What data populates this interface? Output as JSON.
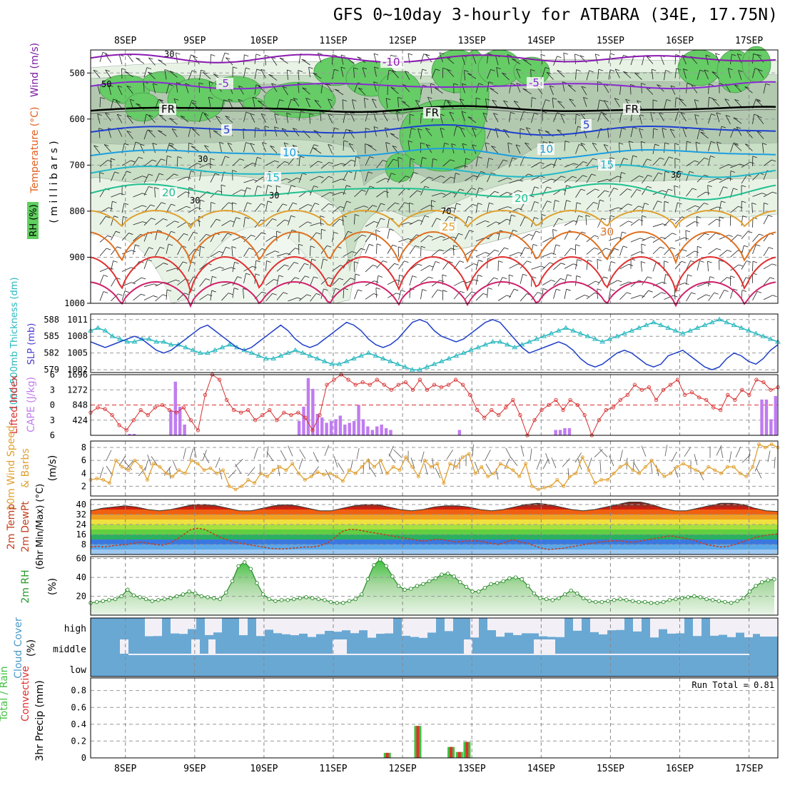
{
  "title": "GFS 0~10day 3-hourly for ATBARA (34E, 17.75N)",
  "days": [
    "8SEP",
    "9SEP",
    "10SEP",
    "11SEP",
    "12SEP",
    "13SEP",
    "14SEP",
    "15SEP",
    "16SEP",
    "17SEP"
  ],
  "run_total": "Run Total = 0.81",
  "panel_labels": {
    "wind": "Wind (m/s)",
    "temperature": "Temperature (°C)",
    "rh": "RH (%)",
    "millibars": "( m i l l i b a r s )",
    "thickness": "1000-500mb Thickness (dm)",
    "slp": "SLP (mb)",
    "lifted": "Lifted Index",
    "cape": "CAPE (J/kg)",
    "wind10a": "10m Wind Speed",
    "wind10b": "& Barbs",
    "ms": "(m/s)",
    "temp2a": "2m Temp",
    "temp2b": "2m DewPt",
    "temp2c": "(6hr Min/Max) (°C)",
    "rh2": "2m RH",
    "pct": "(%)",
    "cloud": "Cloud Cover",
    "precip_a": "Total / Rain",
    "precip_b": "Convective",
    "precip_c": "3hr Precip (mm)"
  },
  "cloud_levels": [
    "high",
    "middle",
    "low"
  ],
  "colors": {
    "rh_green": "#5fcf5f",
    "slp": "#1e3fc8",
    "thickness": "#2ab8c0",
    "cape": "#c07cf0",
    "lifted": "#d83030",
    "wind10": "#e0a030",
    "rh2": "#3a9a3a",
    "cloud": "#6aa8d4",
    "rain": "#e03030",
    "total": "#40c040"
  },
  "chart_data": [
    {
      "type": "contour",
      "name": "upper",
      "ylabel": "( m i l l i b a r s )",
      "yticks": [
        500,
        600,
        700,
        800,
        900,
        1000
      ],
      "ylim": [
        1000,
        450
      ],
      "isotherm_labels": [
        "-10",
        "-5",
        "FR",
        "FR",
        "FR",
        "-5",
        "5",
        "5",
        "10",
        "10",
        "15",
        "15",
        "20",
        "20",
        "25",
        "30"
      ],
      "rh_labels": [
        "30",
        "50",
        "30",
        "30",
        "70",
        "30",
        "30"
      ]
    },
    {
      "type": "line",
      "name": "slp_thickness",
      "x_step_hours": 3,
      "slp_yticks": [
        1002,
        1005,
        1008,
        1011
      ],
      "thickness_yticks": [
        579,
        582,
        585,
        588
      ],
      "slp": [
        1007,
        1006.5,
        1006,
        1006.5,
        1007,
        1007.5,
        1008,
        1007.5,
        1006.5,
        1005.5,
        1005,
        1005.5,
        1006.5,
        1007.5,
        1008.5,
        1009.5,
        1010,
        1009,
        1008,
        1007,
        1006,
        1005.5,
        1006,
        1007,
        1008,
        1009,
        1010,
        1009,
        1007.5,
        1006.5,
        1006,
        1006.5,
        1007.5,
        1008.5,
        1009.5,
        1010.5,
        1010,
        1009,
        1007.5,
        1006.5,
        1006,
        1006.5,
        1007.5,
        1009,
        1010.5,
        1011,
        1010.5,
        1009,
        1008,
        1007.5,
        1007,
        1007.5,
        1008.5,
        1009.5,
        1010.5,
        1011,
        1010.5,
        1009,
        1007.5,
        1006,
        1005,
        1005.5,
        1006,
        1006.5,
        1007,
        1006.5,
        1005.5,
        1004,
        1003,
        1002.5,
        1003,
        1004,
        1005,
        1005.5,
        1005,
        1004,
        1003,
        1002.5,
        1003,
        1004.5,
        1005,
        1005.5,
        1004.5,
        1003.5,
        1002.5,
        1002,
        1002.5,
        1004,
        1005,
        1004.5,
        1003.5,
        1003,
        1004,
        1005.5,
        1006.5
      ],
      "thickness": [
        586,
        586.5,
        586,
        585,
        584.5,
        584,
        584,
        584.5,
        584.5,
        584,
        584,
        583.5,
        583.5,
        583,
        582.5,
        582,
        582,
        582.5,
        583,
        583.5,
        583,
        582.5,
        582,
        581.5,
        581,
        581,
        581.5,
        582,
        582.5,
        582,
        581.5,
        581,
        580.5,
        580,
        580,
        580.5,
        581,
        581.5,
        582,
        581.5,
        581,
        580.5,
        580,
        579.5,
        579,
        579,
        579.5,
        580,
        580.5,
        581,
        581.5,
        582,
        582.5,
        583,
        583.5,
        584,
        584,
        583.5,
        583,
        583.5,
        584,
        584.5,
        585,
        585.5,
        586,
        586.5,
        586,
        585.5,
        585,
        584.5,
        584,
        584.5,
        585,
        585.5,
        586,
        586.5,
        587,
        587.5,
        587,
        586.5,
        586,
        585.5,
        586,
        586.5,
        587,
        587.5,
        588,
        587.5,
        587,
        586.5,
        586,
        585.5,
        585,
        584.5,
        584
      ]
    },
    {
      "type": "bar+line",
      "name": "cape_lifted",
      "cape_yticks": [
        424,
        848,
        1272,
        1696
      ],
      "lifted_yticks": [
        -6,
        -3,
        0,
        3,
        6
      ],
      "cape": [
        0,
        0,
        0,
        0,
        0,
        0,
        0,
        0,
        40,
        40,
        0,
        0,
        0,
        0,
        0,
        0,
        0,
        700,
        1500,
        800,
        300,
        0,
        0,
        0,
        0,
        0,
        0,
        0,
        0,
        0,
        0,
        0,
        0,
        0,
        0,
        0,
        0,
        0,
        0,
        0,
        0,
        0,
        0,
        0,
        0,
        400,
        800,
        1600,
        1300,
        600,
        500,
        350,
        400,
        450,
        550,
        300,
        350,
        400,
        850,
        450,
        250,
        150,
        250,
        300,
        200,
        150,
        0,
        0,
        0,
        0,
        0,
        0,
        0,
        0,
        0,
        0,
        0,
        0,
        0,
        0,
        150,
        0,
        0,
        0,
        0,
        0,
        0,
        0,
        0,
        0,
        0,
        0,
        0,
        0,
        0,
        0,
        0,
        0,
        0,
        0,
        0,
        150,
        150,
        200,
        200,
        0,
        0,
        0,
        0,
        0,
        0,
        0,
        0,
        0,
        0,
        0,
        0,
        0,
        0,
        0,
        0,
        0,
        0,
        0,
        0,
        0,
        0,
        0,
        0,
        0,
        0,
        0,
        0,
        0,
        0,
        0,
        0,
        0,
        0,
        0,
        0,
        0,
        0,
        0,
        0,
        0,
        1000,
        1000,
        450,
        1100
      ],
      "lifted": [
        1.5,
        0.5,
        0.8,
        2,
        4,
        5,
        3,
        1,
        2,
        0.5,
        0,
        1,
        1.5,
        0.5,
        3,
        5,
        -2,
        -6,
        -5,
        -1,
        1,
        1.5,
        1,
        3,
        2,
        1,
        3,
        1.5,
        2,
        1.5,
        2.5,
        5,
        2,
        -4,
        -5,
        -6,
        -5,
        -4,
        -4.5,
        -4,
        -5,
        -4,
        -3,
        -4,
        -4.5,
        -3,
        -5,
        -3,
        -4,
        -3.5,
        -4,
        -5,
        -4,
        -2,
        1,
        2.5,
        1,
        2,
        0.5,
        -1,
        2,
        6,
        3,
        1,
        0,
        -1,
        1,
        -1,
        0,
        2,
        6,
        3,
        1,
        0.5,
        -1,
        -2,
        -4,
        -3,
        -3.5,
        -1,
        -3,
        -4,
        -5,
        -2,
        -2.5,
        -1.5,
        -1,
        0.5,
        1,
        -2,
        -1,
        -3,
        -2,
        -5,
        -4.5,
        -3,
        -3.5
      ],
      "ylim_cape": [
        0,
        1696
      ],
      "ylim_lifted": [
        6,
        -6
      ]
    },
    {
      "type": "line",
      "name": "wind10m",
      "yticks": [
        2,
        4,
        6,
        8
      ],
      "ylim": [
        0.5,
        9
      ],
      "values": [
        3,
        3.2,
        3,
        2.5,
        6,
        5,
        4.5,
        6,
        5,
        3,
        5.5,
        5,
        4,
        3.5,
        4.5,
        4,
        6,
        5.5,
        4.5,
        4.8,
        4,
        4.5,
        2,
        1.5,
        2,
        3,
        2.5,
        4,
        3.5,
        4.5,
        5,
        4.5,
        5.5,
        4,
        3,
        3.5,
        4.2,
        3.8,
        4,
        3.5,
        2.8,
        4.5,
        4,
        5,
        6,
        5,
        6,
        4,
        5,
        4.5,
        6.5,
        5,
        3.5,
        6,
        5,
        5.5,
        2.5,
        5.5,
        5,
        6.5,
        7,
        4,
        5,
        3.5,
        4,
        5.5,
        5,
        4.5,
        3.5,
        5.5,
        2,
        1.5,
        1.8,
        2,
        3,
        2,
        3.5,
        4,
        6.5,
        4.5,
        2.5,
        3,
        3,
        4,
        5,
        5.5,
        4.5,
        4,
        5,
        6,
        4.5,
        3.5,
        4,
        5,
        5.5,
        5,
        4.5,
        4,
        5,
        4.5,
        4,
        5,
        5,
        4,
        3.5,
        5,
        8.5,
        8,
        8.5,
        8
      ]
    },
    {
      "type": "area",
      "name": "temp2m",
      "yticks": [
        8,
        16,
        24,
        32,
        40
      ],
      "ylim": [
        0,
        44
      ],
      "tmax": [
        35,
        37,
        38,
        39,
        38,
        36,
        35,
        36,
        38,
        40,
        40,
        39,
        37,
        35,
        35,
        37,
        39,
        40,
        39,
        37,
        35,
        35,
        37,
        39,
        40,
        40,
        38,
        36,
        35,
        36,
        38,
        39,
        39,
        38,
        36,
        35,
        36,
        38,
        40,
        41,
        40,
        38,
        36,
        35,
        36,
        38,
        40,
        42,
        42,
        40,
        37,
        35,
        35,
        37,
        39,
        41,
        41,
        40,
        37,
        35,
        34.5
      ],
      "dewpt": [
        6,
        6.5,
        6,
        7,
        7.5,
        8,
        9,
        10,
        9,
        8,
        7.5,
        9,
        12,
        16,
        20,
        21,
        20,
        17,
        14,
        12,
        10,
        9,
        8,
        7,
        6,
        5,
        4.5,
        4.5,
        5,
        5.5,
        6,
        6,
        7,
        9,
        13,
        18,
        20,
        20,
        19,
        18,
        17,
        16,
        15,
        14,
        13,
        12,
        11,
        11,
        12,
        12,
        11,
        10,
        10.5,
        11,
        11,
        10,
        9,
        8,
        10,
        12,
        10,
        9,
        7,
        5,
        4,
        4.5,
        5,
        6,
        7,
        8,
        9,
        10,
        10.5,
        11,
        11,
        10,
        10,
        11,
        12,
        13,
        14,
        15,
        14,
        13,
        12,
        10,
        8,
        7,
        6,
        6.5,
        8,
        10,
        12,
        14,
        15,
        16,
        16.5
      ]
    },
    {
      "type": "area",
      "name": "rh2m",
      "yticks": [
        20,
        40,
        60
      ],
      "ylim": [
        0,
        62
      ],
      "values": [
        13,
        14,
        15,
        16,
        17,
        20,
        27,
        21,
        19,
        17,
        15,
        16,
        17,
        18,
        20,
        22,
        25,
        23,
        20,
        19,
        18,
        17,
        24,
        36,
        52,
        56,
        49,
        34,
        22,
        17,
        15,
        16,
        16,
        17,
        18,
        19,
        18,
        17,
        16,
        14,
        13,
        13,
        15,
        17,
        22,
        38,
        53,
        59,
        52,
        41,
        31,
        27,
        28,
        31,
        33,
        36,
        39,
        43,
        44,
        41,
        35,
        30,
        25,
        25,
        29,
        33,
        34,
        36,
        39,
        40,
        38,
        31,
        23,
        18,
        17,
        16,
        18,
        22,
        26,
        23,
        18,
        15,
        14,
        14,
        15,
        16,
        17,
        16,
        15,
        14,
        14,
        13,
        13,
        14,
        16,
        17,
        18,
        19,
        20,
        19,
        17,
        16,
        15,
        14,
        13,
        15,
        18,
        25,
        31,
        35,
        37,
        38
      ]
    },
    {
      "type": "heatmap",
      "name": "cloud_cover",
      "levels": [
        "high",
        "middle",
        "low"
      ]
    },
    {
      "type": "bar",
      "name": "precip",
      "yticks": [
        0,
        0.2,
        0.4,
        0.6,
        0.8
      ],
      "ylim": [
        0,
        0.95
      ],
      "bars": [
        {
          "day_offset": 3.78,
          "total": 0.06,
          "rain": 0.06
        },
        {
          "day_offset": 4.22,
          "total": 0.38,
          "rain": 0.38
        },
        {
          "day_offset": 4.7,
          "total": 0.13,
          "rain": 0.13
        },
        {
          "day_offset": 4.82,
          "total": 0.07,
          "rain": 0.07
        },
        {
          "day_offset": 4.93,
          "total": 0.19,
          "rain": 0.19
        }
      ]
    }
  ]
}
